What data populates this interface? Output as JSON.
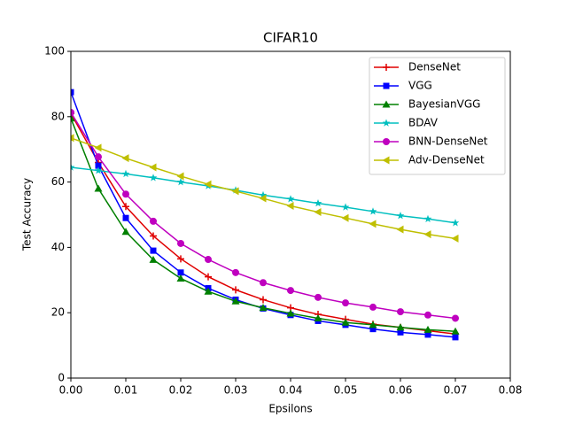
{
  "chart_data": {
    "type": "line",
    "title": "CIFAR10",
    "xlabel": "Epsilons",
    "ylabel": "Test Accuracy",
    "x": [
      0,
      0.005,
      0.01,
      0.015,
      0.02,
      0.025,
      0.03,
      0.035,
      0.04,
      0.045,
      0.05,
      0.055,
      0.06,
      0.065,
      0.07
    ],
    "series": [
      {
        "name": "DenseNet",
        "color": "#e00000",
        "marker": "plus",
        "values": [
          81,
          66,
          52.5,
          43.5,
          36.5,
          31,
          27,
          24,
          21.5,
          19.5,
          18,
          16.5,
          15.5,
          14.5,
          13.5
        ]
      },
      {
        "name": "VGG",
        "color": "#0000ff",
        "marker": "square",
        "values": [
          87.5,
          65,
          49,
          39,
          32.3,
          27.5,
          24,
          21.3,
          19.3,
          17.5,
          16.3,
          15,
          14,
          13.3,
          12.5
        ]
      },
      {
        "name": "BayesianVGG",
        "color": "#008000",
        "marker": "triangle-up",
        "values": [
          79.5,
          58,
          44.8,
          36.2,
          30.5,
          26.5,
          23.5,
          21.5,
          19.8,
          18.3,
          17,
          16.3,
          15.5,
          14.8,
          14.3
        ]
      },
      {
        "name": "BDAV",
        "color": "#00bfbf",
        "marker": "star",
        "values": [
          64.5,
          63.5,
          62.5,
          61.3,
          60,
          58.8,
          57.5,
          56,
          54.8,
          53.5,
          52.3,
          51,
          49.7,
          48.7,
          47.5
        ]
      },
      {
        "name": "BNN-DenseNet",
        "color": "#bf00bf",
        "marker": "circle",
        "values": [
          81.3,
          67.7,
          56.3,
          48,
          41.2,
          36.3,
          32.3,
          29.2,
          26.8,
          24.7,
          23,
          21.7,
          20.3,
          19.3,
          18.3
        ]
      },
      {
        "name": "Adv-DenseNet",
        "color": "#bfbf00",
        "marker": "triangle-left",
        "values": [
          73.5,
          70.5,
          67.3,
          64.5,
          61.8,
          59.3,
          57.2,
          55,
          52.7,
          50.8,
          49,
          47.2,
          45.5,
          44,
          42.7
        ]
      }
    ],
    "xlim": [
      0,
      0.08
    ],
    "xticks": [
      {
        "value": 0,
        "label": "0.00"
      },
      0.01,
      0.02,
      0.03,
      0.04,
      0.05,
      0.06,
      0.07,
      0.08
    ],
    "ylim": [
      0,
      100
    ],
    "yticks": [
      0,
      20,
      40,
      60,
      80,
      100
    ],
    "grid": false,
    "legend": "upper right"
  }
}
